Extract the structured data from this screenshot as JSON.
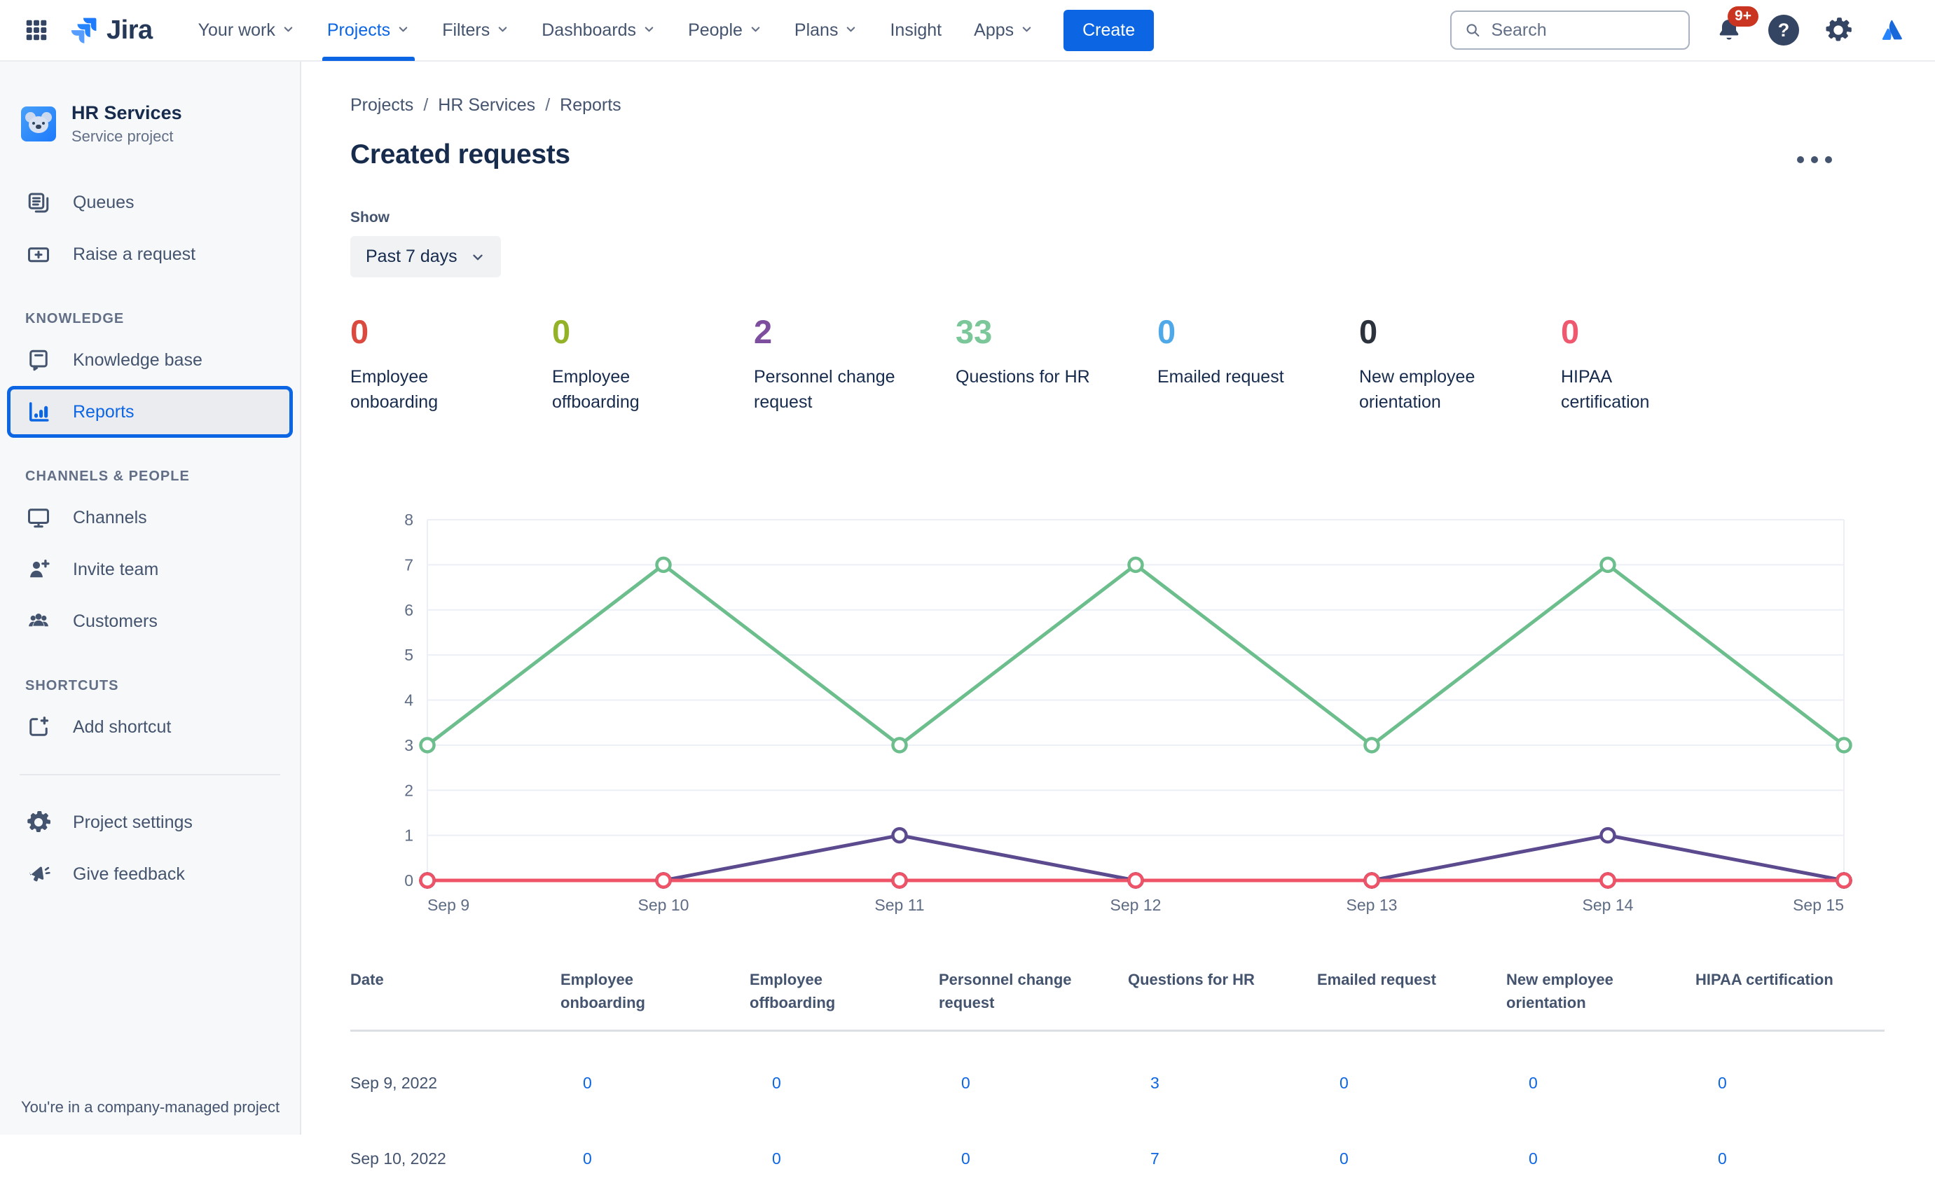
{
  "nav": {
    "brand": "Jira",
    "items": [
      {
        "label": "Your work",
        "chevron": true,
        "active": false
      },
      {
        "label": "Projects",
        "chevron": true,
        "active": true
      },
      {
        "label": "Filters",
        "chevron": true,
        "active": false
      },
      {
        "label": "Dashboards",
        "chevron": true,
        "active": false
      },
      {
        "label": "People",
        "chevron": true,
        "active": false
      },
      {
        "label": "Plans",
        "chevron": true,
        "active": false
      },
      {
        "label": "Insight",
        "chevron": false,
        "active": false
      },
      {
        "label": "Apps",
        "chevron": true,
        "active": false
      }
    ],
    "create_label": "Create",
    "search_placeholder": "Search",
    "notifications_badge": "9+"
  },
  "sidebar": {
    "project": {
      "name": "HR Services",
      "type": "Service project"
    },
    "groups": [
      {
        "header": "",
        "items": [
          {
            "label": "Queues",
            "icon": "queues-icon"
          },
          {
            "label": "Raise a request",
            "icon": "raise-request-icon"
          }
        ]
      },
      {
        "header": "KNOWLEDGE",
        "items": [
          {
            "label": "Knowledge base",
            "icon": "knowledge-base-icon"
          },
          {
            "label": "Reports",
            "icon": "reports-icon",
            "selected": true
          }
        ]
      },
      {
        "header": "CHANNELS & PEOPLE",
        "items": [
          {
            "label": "Channels",
            "icon": "monitor-icon"
          },
          {
            "label": "Invite team",
            "icon": "person-add-icon"
          },
          {
            "label": "Customers",
            "icon": "people-icon"
          }
        ]
      },
      {
        "header": "SHORTCUTS",
        "items": [
          {
            "label": "Add shortcut",
            "icon": "add-shortcut-icon"
          }
        ]
      },
      {
        "header": "",
        "divider_before": true,
        "items": [
          {
            "label": "Project settings",
            "icon": "gear-icon"
          },
          {
            "label": "Give feedback",
            "icon": "megaphone-icon"
          }
        ]
      }
    ],
    "footer": "You're in a company-managed project"
  },
  "breadcrumb": [
    "Projects",
    "HR Services",
    "Reports"
  ],
  "page": {
    "title": "Created requests",
    "show_label": "Show",
    "range_value": "Past 7 days"
  },
  "stats": [
    {
      "value": "0",
      "label": "Employee onboarding",
      "color": "#DA4A3F"
    },
    {
      "value": "0",
      "label": "Employee offboarding",
      "color": "#94B228"
    },
    {
      "value": "2",
      "label": "Personnel change request",
      "color": "#7D4E9E"
    },
    {
      "value": "33",
      "label": "Questions for HR",
      "color": "#7CC79A"
    },
    {
      "value": "0",
      "label": "Emailed request",
      "color": "#4FA9E8"
    },
    {
      "value": "0",
      "label": "New employee orientation",
      "color": "#2C333D"
    },
    {
      "value": "0",
      "label": "HIPAA certification",
      "color": "#EF5970"
    }
  ],
  "chart_data": {
    "type": "line",
    "title": "Created requests - past 7 days",
    "x": [
      "Sep 9",
      "Sep 10",
      "Sep 11",
      "Sep 12",
      "Sep 13",
      "Sep 14",
      "Sep 15"
    ],
    "ylim": [
      0,
      8
    ],
    "yticks": [
      0,
      1,
      2,
      3,
      4,
      5,
      6,
      7,
      8
    ],
    "grid": true,
    "legend": false,
    "series": [
      {
        "name": "Employee offboarding",
        "color": "#94B228",
        "values": [
          0,
          0,
          0,
          0,
          0,
          0,
          0
        ]
      },
      {
        "name": "Employee onboarding",
        "color": "#DA4A3F",
        "values": [
          0,
          0,
          0,
          0,
          0,
          0,
          0
        ]
      },
      {
        "name": "Emailed request",
        "color": "#4FA9E8",
        "values": [
          0,
          0,
          0,
          0,
          0,
          0,
          0
        ]
      },
      {
        "name": "New employee orientation",
        "color": "#2C333D",
        "values": [
          0,
          0,
          0,
          0,
          0,
          0,
          0
        ]
      },
      {
        "name": "Personnel change request",
        "color": "#5C4A8E",
        "values": [
          0,
          0,
          1,
          0,
          0,
          1,
          0
        ]
      },
      {
        "name": "HIPAA certification",
        "color": "#EF5368",
        "values": [
          0,
          0,
          0,
          0,
          0,
          0,
          0
        ]
      },
      {
        "name": "Questions for HR",
        "color": "#6CBE8D",
        "values": [
          3,
          7,
          3,
          7,
          3,
          7,
          3
        ]
      }
    ]
  },
  "table": {
    "columns": [
      "Date",
      "Employee onboarding",
      "Employee offboarding",
      "Personnel change request",
      "Questions for HR",
      "Emailed request",
      "New employee orientation",
      "HIPAA certification"
    ],
    "rows": [
      {
        "date": "Sep 9, 2022",
        "values": [
          "0",
          "0",
          "0",
          "3",
          "0",
          "0",
          "0"
        ]
      },
      {
        "date": "Sep 10, 2022",
        "values": [
          "0",
          "0",
          "0",
          "7",
          "0",
          "0",
          "0"
        ]
      }
    ]
  },
  "colors": {
    "accent_blue": "#0C66E4",
    "nav_text": "#44546F",
    "title_text": "#172B4D",
    "grid_line": "#ECEFF6",
    "axis_label": "#5E6C84",
    "notification_badge": "#CA3521",
    "sidebar_bg": "#F7F8F9",
    "selected_bg": "#EBECF0"
  }
}
